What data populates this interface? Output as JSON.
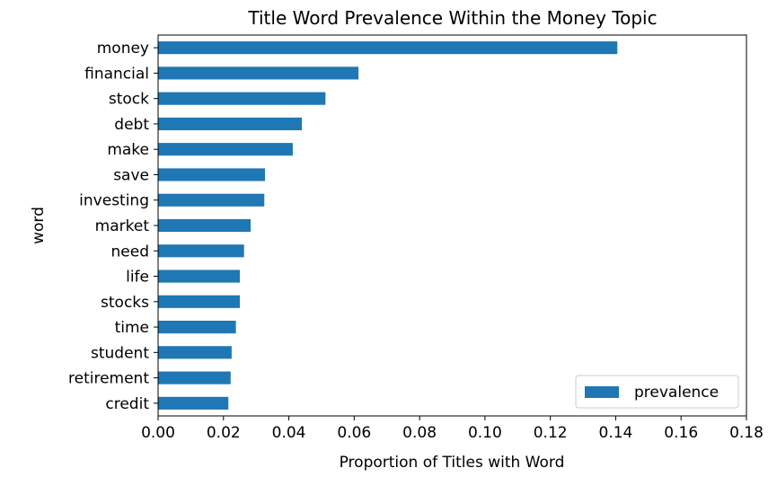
{
  "chart_data": {
    "type": "bar",
    "orientation": "horizontal",
    "title": "Title Word Prevalence Within the Money Topic",
    "xlabel": "Proportion of Titles with Word",
    "ylabel": "word",
    "categories": [
      "money",
      "financial",
      "stock",
      "debt",
      "make",
      "save",
      "investing",
      "market",
      "need",
      "life",
      "stocks",
      "time",
      "student",
      "retirement",
      "credit"
    ],
    "series": [
      {
        "name": "prevalence",
        "color": "#1f77b4",
        "values": [
          0.1405,
          0.0613,
          0.0512,
          0.044,
          0.0412,
          0.0327,
          0.0325,
          0.0283,
          0.0263,
          0.025,
          0.025,
          0.0238,
          0.0225,
          0.0222,
          0.0215
        ]
      }
    ],
    "xlim": [
      0,
      0.18
    ],
    "xticks": [
      "0.00",
      "0.02",
      "0.04",
      "0.06",
      "0.08",
      "0.10",
      "0.12",
      "0.14",
      "0.16",
      "0.18"
    ],
    "grid": false,
    "legend_position": "lower-right"
  }
}
